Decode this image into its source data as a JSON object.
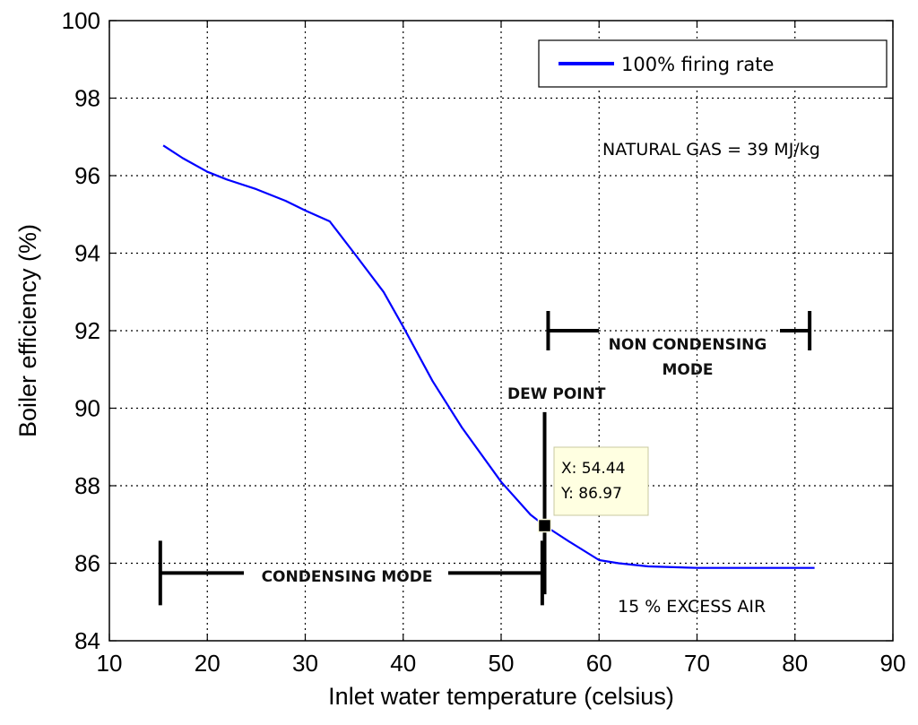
{
  "chart_data": {
    "type": "line",
    "xlabel": "Inlet water temperature (celsius)",
    "ylabel": "Boiler efficiency (%)",
    "xlim": [
      10,
      90
    ],
    "ylim": [
      84,
      100
    ],
    "xticks": [
      "10",
      "20",
      "30",
      "40",
      "50",
      "60",
      "70",
      "80",
      "90"
    ],
    "yticks": [
      "84",
      "86",
      "88",
      "90",
      "92",
      "94",
      "96",
      "98",
      "100"
    ],
    "grid": true,
    "legend_position": "top-right",
    "series": [
      {
        "name": "100% firing rate",
        "color": "#0000ff",
        "x": [
          15.5,
          17.5,
          20,
          22,
          25,
          28,
          30,
          32.5,
          35,
          38,
          40,
          43,
          46,
          50,
          53,
          54.44,
          57,
          60,
          62,
          65,
          70,
          75,
          82
        ],
        "y": [
          96.78,
          96.45,
          96.1,
          95.9,
          95.65,
          95.35,
          95.1,
          94.82,
          94.0,
          93.0,
          92.1,
          90.7,
          89.5,
          88.1,
          87.25,
          86.97,
          86.55,
          86.08,
          86.0,
          85.92,
          85.88,
          85.88,
          85.88
        ]
      }
    ],
    "annotations": {
      "fuel": "NATURAL GAS = 39 MJ/kg",
      "excess_air": "15 % EXCESS AIR",
      "dew_point": "DEW POINT",
      "non_condensing_line1": "NON CONDENSING",
      "non_condensing_line2": "MODE",
      "condensing": "CONDENSING MODE"
    },
    "datatip": {
      "x": 54.44,
      "y": 86.97,
      "x_text": "X: 54.44",
      "y_text": "Y: 86.97"
    },
    "spans": {
      "non_condensing": {
        "from": 54.8,
        "to": 81.5,
        "at_y": 92.0
      },
      "condensing": {
        "from": 15.2,
        "to": 54.2,
        "at_y": 85.75
      },
      "dew_point_line": {
        "x": 54.44,
        "from_y": 85.2,
        "to_y": 89.9
      }
    }
  }
}
